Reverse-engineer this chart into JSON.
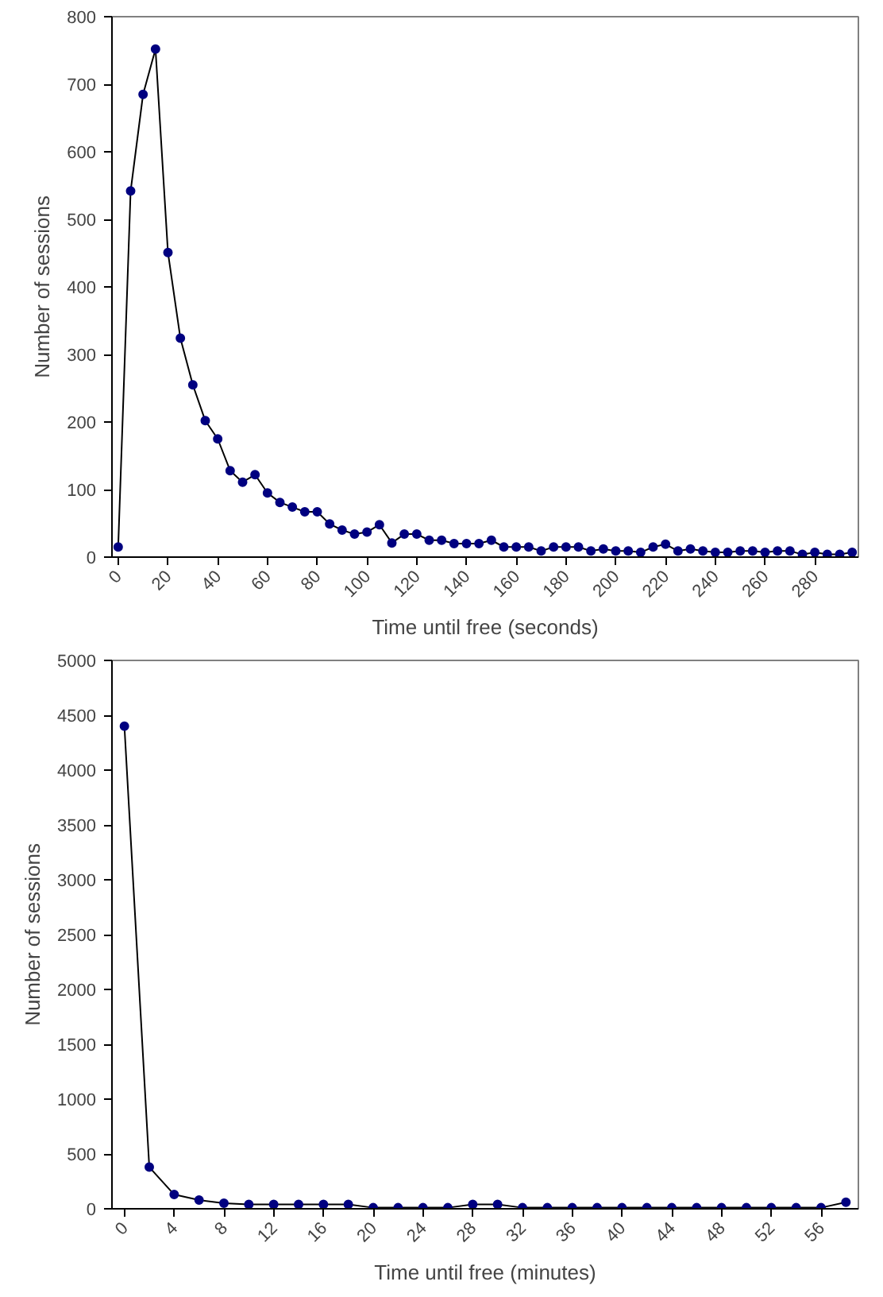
{
  "chart_data": [
    {
      "type": "line",
      "xlabel": "Time until free (seconds)",
      "ylabel": "Number of sessions",
      "x": [
        0,
        5,
        10,
        15,
        20,
        25,
        30,
        35,
        40,
        45,
        50,
        55,
        60,
        65,
        70,
        75,
        80,
        85,
        90,
        95,
        100,
        105,
        110,
        115,
        120,
        125,
        130,
        135,
        140,
        145,
        150,
        155,
        160,
        165,
        170,
        175,
        180,
        185,
        190,
        195,
        200,
        205,
        210,
        215,
        220,
        225,
        230,
        235,
        240,
        245,
        250,
        255,
        260,
        265,
        270,
        275,
        280,
        285,
        290,
        295
      ],
      "series": [
        {
          "color": "#000080",
          "values": [
            15,
            542,
            685,
            752,
            451,
            324,
            255,
            202,
            175,
            128,
            111,
            122,
            95,
            81,
            74,
            67,
            67,
            49,
            40,
            34,
            37,
            48,
            21,
            34,
            34,
            25,
            25,
            20,
            20,
            20,
            25,
            15,
            15,
            15,
            9,
            15,
            15,
            15,
            9,
            12,
            9,
            9,
            7,
            15,
            19,
            9,
            12,
            9,
            7,
            7,
            9,
            9,
            7,
            9,
            9,
            4,
            7,
            4,
            4,
            7
          ]
        }
      ],
      "xlim": [
        -2.5,
        297.5
      ],
      "xticks": [
        0,
        20,
        40,
        60,
        80,
        100,
        120,
        140,
        160,
        180,
        200,
        220,
        240,
        260,
        280
      ],
      "ylim": [
        0,
        800
      ],
      "yticks": [
        0,
        100,
        200,
        300,
        400,
        500,
        600,
        700,
        800
      ],
      "grid": false,
      "marker": "circle",
      "line_style": "solid"
    },
    {
      "type": "line",
      "xlabel": "Time until free (minutes)",
      "ylabel": "Number of sessions",
      "x": [
        0,
        2,
        4,
        6,
        8,
        10,
        12,
        14,
        16,
        18,
        20,
        22,
        24,
        26,
        28,
        30,
        32,
        34,
        36,
        38,
        40,
        42,
        44,
        46,
        48,
        50,
        52,
        54,
        56,
        58
      ],
      "series": [
        {
          "color": "#000080",
          "values": [
            4400,
            380,
            130,
            80,
            50,
            40,
            40,
            40,
            40,
            40,
            10,
            10,
            10,
            10,
            40,
            40,
            10,
            10,
            10,
            10,
            10,
            10,
            10,
            10,
            10,
            10,
            10,
            10,
            10,
            60
          ]
        }
      ],
      "xlim": [
        -1,
        59
      ],
      "xticks": [
        0,
        4,
        8,
        12,
        16,
        20,
        24,
        28,
        32,
        36,
        40,
        44,
        48,
        52,
        56
      ],
      "ylim": [
        0,
        5000
      ],
      "yticks": [
        0,
        500,
        1000,
        1500,
        2000,
        2500,
        3000,
        3500,
        4000,
        4500,
        5000
      ],
      "grid": false,
      "marker": "circle",
      "line_style": "solid"
    }
  ]
}
